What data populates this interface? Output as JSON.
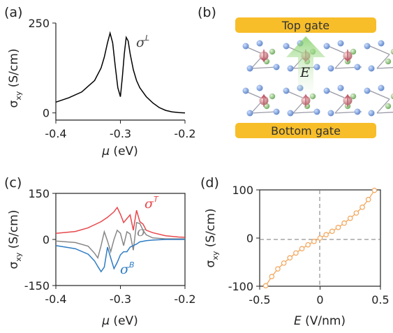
{
  "panels": {
    "a": {
      "label": "(a)",
      "ylabel": "σxy (S/cm)",
      "xlabel": "μ (eV)",
      "annotation": "σL"
    },
    "b": {
      "label": "(b)",
      "top_gate": "Top gate",
      "bottom_gate": "Bottom gate",
      "field_label": "E"
    },
    "c": {
      "label": "(c)",
      "ylabel": "σxy (S/cm)",
      "xlabel": "μ (eV)",
      "annotations": {
        "top": "σT",
        "total": "σ",
        "bottom": "σB"
      }
    },
    "d": {
      "label": "(d)",
      "ylabel": "σxy (S/cm)",
      "xlabel": "E (V/nm)"
    }
  },
  "colors": {
    "total": "#878787",
    "top": "#e8474b",
    "bottom": "#2e7cc4",
    "line_d": "#f3a55a",
    "gate": "#f7be2a",
    "arrow": "#8fd47a"
  },
  "chart_data": [
    {
      "type": "line",
      "panel": "a",
      "xlabel": "μ (eV)",
      "ylabel": "σxy (S/cm)",
      "xlim": [
        -0.4,
        -0.2
      ],
      "ylim": [
        -20,
        250
      ],
      "xticks": [
        -0.4,
        -0.3,
        -0.2
      ],
      "yticks": [
        0,
        250
      ],
      "series": [
        {
          "name": "σL",
          "color": "#000000",
          "x": [
            -0.4,
            -0.38,
            -0.36,
            -0.34,
            -0.33,
            -0.325,
            -0.32,
            -0.316,
            -0.312,
            -0.308,
            -0.304,
            -0.3,
            -0.297,
            -0.294,
            -0.291,
            -0.288,
            -0.285,
            -0.28,
            -0.275,
            -0.27,
            -0.26,
            -0.25,
            -0.24,
            -0.23,
            -0.22,
            -0.21,
            -0.2
          ],
          "y": [
            30,
            42,
            58,
            90,
            125,
            155,
            195,
            222,
            195,
            130,
            70,
            45,
            100,
            165,
            210,
            200,
            165,
            120,
            90,
            70,
            45,
            28,
            15,
            7,
            3,
            1,
            0
          ]
        }
      ]
    },
    {
      "type": "line",
      "panel": "c",
      "xlabel": "μ (eV)",
      "ylabel": "σxy (S/cm)",
      "xlim": [
        -0.4,
        -0.2
      ],
      "ylim": [
        -150,
        150
      ],
      "xticks": [
        -0.4,
        -0.3,
        -0.2
      ],
      "yticks": [
        -150,
        0,
        150
      ],
      "series": [
        {
          "name": "σT",
          "color": "#e8474b",
          "x": [
            -0.4,
            -0.37,
            -0.35,
            -0.33,
            -0.32,
            -0.31,
            -0.305,
            -0.3,
            -0.295,
            -0.29,
            -0.285,
            -0.28,
            -0.275,
            -0.27,
            -0.265,
            -0.26,
            -0.25,
            -0.23,
            -0.21,
            -0.2
          ],
          "y": [
            20,
            26,
            38,
            58,
            72,
            90,
            104,
            82,
            55,
            68,
            80,
            30,
            95,
            58,
            50,
            30,
            22,
            12,
            8,
            7
          ]
        },
        {
          "name": "σ",
          "color": "#878787",
          "x": [
            -0.4,
            -0.37,
            -0.35,
            -0.34,
            -0.335,
            -0.33,
            -0.325,
            -0.32,
            -0.315,
            -0.31,
            -0.305,
            -0.3,
            -0.295,
            -0.29,
            -0.285,
            -0.28,
            -0.275,
            -0.27,
            -0.265,
            -0.26,
            -0.25,
            -0.23,
            -0.21,
            -0.2
          ],
          "y": [
            -5,
            -10,
            -22,
            -45,
            -60,
            -20,
            25,
            -5,
            -40,
            0,
            30,
            20,
            -20,
            25,
            18,
            -35,
            55,
            52,
            30,
            15,
            5,
            2,
            2,
            2
          ]
        },
        {
          "name": "σB",
          "color": "#2e7cc4",
          "x": [
            -0.4,
            -0.37,
            -0.35,
            -0.34,
            -0.335,
            -0.33,
            -0.325,
            -0.32,
            -0.315,
            -0.31,
            -0.305,
            -0.3,
            -0.295,
            -0.29,
            -0.285,
            -0.28,
            -0.275,
            -0.27,
            -0.26,
            -0.25,
            -0.23,
            -0.21,
            -0.2
          ],
          "y": [
            -20,
            -30,
            -48,
            -70,
            -88,
            -105,
            -90,
            -25,
            -60,
            -95,
            -75,
            -50,
            -40,
            -40,
            -25,
            -20,
            -15,
            -8,
            -4,
            -2,
            0,
            0,
            0
          ]
        }
      ]
    },
    {
      "type": "line",
      "panel": "d",
      "xlabel": "E (V/nm)",
      "ylabel": "σxy (S/cm)",
      "xlim": [
        -0.5,
        0.5
      ],
      "ylim": [
        -100,
        100
      ],
      "xticks": [
        -0.5,
        0,
        0.5
      ],
      "yticks": [
        -100,
        0,
        100
      ],
      "series": [
        {
          "name": "",
          "color": "#f3a55a",
          "markers": true,
          "x": [
            -0.45,
            -0.4,
            -0.35,
            -0.3,
            -0.25,
            -0.2,
            -0.15,
            -0.1,
            -0.05,
            0,
            0.05,
            0.1,
            0.15,
            0.2,
            0.25,
            0.3,
            0.35,
            0.4,
            0.45
          ],
          "y": [
            -99,
            -80,
            -64,
            -52,
            -41,
            -31,
            -22,
            -14,
            -7,
            0,
            7,
            14,
            22,
            31,
            41,
            52,
            64,
            80,
            99
          ]
        }
      ]
    }
  ]
}
